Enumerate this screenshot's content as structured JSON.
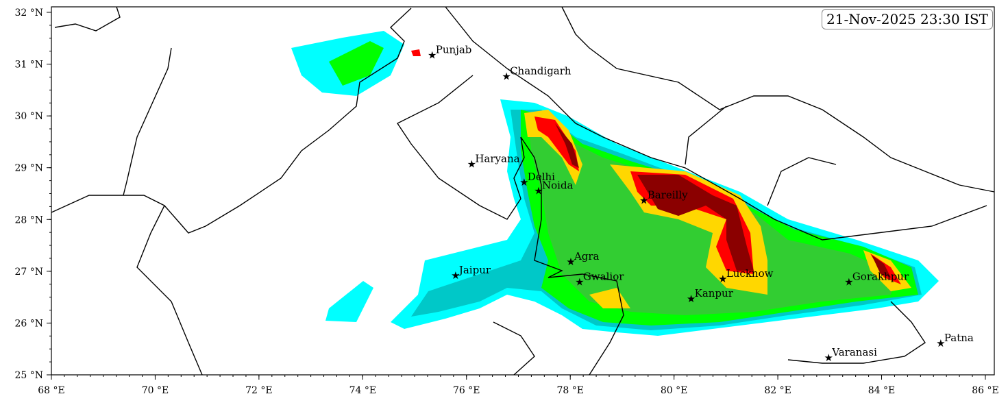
{
  "timestamp": "21-Nov-2025 23:30 IST",
  "map": {
    "lon_range": [
      68,
      86.17
    ],
    "lat_range": [
      24.9,
      32.1
    ],
    "x_ticks": [
      {
        "value": 68,
        "label": "68 °E"
      },
      {
        "value": 70,
        "label": "70 °E"
      },
      {
        "value": 72,
        "label": "72 °E"
      },
      {
        "value": 74,
        "label": "74 °E"
      },
      {
        "value": 76,
        "label": "76 °E"
      },
      {
        "value": 78,
        "label": "78 °E"
      },
      {
        "value": 80,
        "label": "80 °E"
      },
      {
        "value": 82,
        "label": "82 °E"
      },
      {
        "value": 84,
        "label": "84 °E"
      },
      {
        "value": 86,
        "label": "86 °E"
      }
    ],
    "y_ticks": [
      {
        "value": 25,
        "label": "25 °N"
      },
      {
        "value": 26,
        "label": "26 °N"
      },
      {
        "value": 27,
        "label": "27 °N"
      },
      {
        "value": 28,
        "label": "28 °N"
      },
      {
        "value": 29,
        "label": "29 °N"
      },
      {
        "value": 30,
        "label": "30 °N"
      },
      {
        "value": 31,
        "label": "31 °N"
      },
      {
        "value": 32,
        "label": "32 °N"
      }
    ],
    "level_colors": [
      "#00ffff",
      "#00c8c8",
      "#00ff00",
      "#32cd32",
      "#ffd700",
      "#ff0000",
      "#8b0000"
    ],
    "marker_icon": "star-icon",
    "cities": [
      {
        "name": "Punjab",
        "lon": 75.34,
        "lat": 31.17
      },
      {
        "name": "Chandigarh",
        "lon": 76.77,
        "lat": 30.76
      },
      {
        "name": "Haryana",
        "lon": 76.1,
        "lat": 29.07
      },
      {
        "name": "Delhi",
        "lon": 77.11,
        "lat": 28.72
      },
      {
        "name": "Noida",
        "lon": 77.39,
        "lat": 28.55
      },
      {
        "name": "Bareilly",
        "lon": 79.42,
        "lat": 28.37
      },
      {
        "name": "Agra",
        "lon": 78.01,
        "lat": 27.18
      },
      {
        "name": "Gwalior",
        "lon": 78.18,
        "lat": 26.79
      },
      {
        "name": "Jaipur",
        "lon": 75.79,
        "lat": 26.92
      },
      {
        "name": "Lucknow",
        "lon": 80.94,
        "lat": 26.85
      },
      {
        "name": "Kanpur",
        "lon": 80.33,
        "lat": 26.47
      },
      {
        "name": "Gorakhpur",
        "lon": 83.37,
        "lat": 26.79
      },
      {
        "name": "Varanasi",
        "lon": 82.98,
        "lat": 25.33
      },
      {
        "name": "Patna",
        "lon": 85.14,
        "lat": 25.61
      }
    ]
  }
}
